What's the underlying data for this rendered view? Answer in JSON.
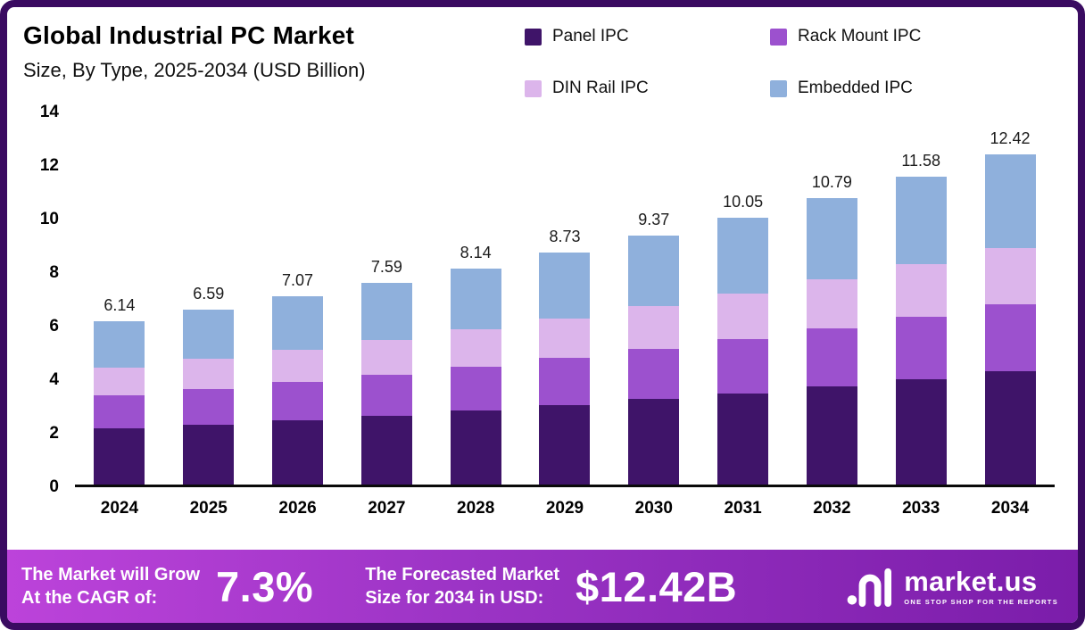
{
  "header": {
    "title": "Global Industrial PC Market",
    "subtitle": "Size, By Type, 2025-2034 (USD Billion)"
  },
  "legend": [
    {
      "label": "Panel IPC",
      "color": "#3f1469"
    },
    {
      "label": "Rack Mount IPC",
      "color": "#9c51ce"
    },
    {
      "label": "DIN Rail IPC",
      "color": "#dcb5eb"
    },
    {
      "label": "Embedded IPC",
      "color": "#8fb0dc"
    }
  ],
  "chart_data": {
    "type": "bar",
    "stacked": true,
    "title": "Global Industrial PC Market Size, By Type, 2025-2034 (USD Billion)",
    "xlabel": "",
    "ylabel": "",
    "ylim": [
      0,
      14
    ],
    "yticks": [
      0,
      2,
      4,
      6,
      8,
      10,
      12,
      14
    ],
    "grid": false,
    "legend_position": "top",
    "categories": [
      "2024",
      "2025",
      "2026",
      "2027",
      "2028",
      "2029",
      "2030",
      "2031",
      "2032",
      "2033",
      "2034"
    ],
    "series": [
      {
        "name": "Panel IPC",
        "color": "#3f1469",
        "values": [
          2.1,
          2.25,
          2.42,
          2.6,
          2.79,
          2.99,
          3.21,
          3.44,
          3.7,
          3.97,
          4.26
        ]
      },
      {
        "name": "Rack Mount IPC",
        "color": "#9c51ce",
        "values": [
          1.25,
          1.34,
          1.44,
          1.54,
          1.65,
          1.77,
          1.9,
          2.04,
          2.19,
          2.35,
          2.52
        ]
      },
      {
        "name": "DIN Rail IPC",
        "color": "#dcb5eb",
        "values": [
          1.05,
          1.13,
          1.21,
          1.3,
          1.39,
          1.49,
          1.6,
          1.72,
          1.84,
          1.98,
          2.12
        ]
      },
      {
        "name": "Embedded IPC",
        "color": "#8fb0dc",
        "values": [
          1.74,
          1.87,
          2.0,
          2.15,
          2.31,
          2.48,
          2.66,
          2.85,
          3.06,
          3.28,
          3.52
        ]
      }
    ],
    "totals": [
      6.14,
      6.59,
      7.07,
      7.59,
      8.14,
      8.73,
      9.37,
      10.05,
      10.79,
      11.58,
      12.42
    ],
    "total_labels": [
      "6.14",
      "6.59",
      "7.07",
      "7.59",
      "8.14",
      "8.73",
      "9.37",
      "10.05",
      "10.79",
      "11.58",
      "12.42"
    ]
  },
  "footer": {
    "cagr_label_line1": "The Market will Grow",
    "cagr_label_line2": "At the CAGR of:",
    "cagr_value": "7.3%",
    "forecast_label_line1": "The Forecasted Market",
    "forecast_label_line2": "Size for 2034 in USD:",
    "forecast_value": "$12.42B",
    "brand": "market.us",
    "brand_tagline": "ONE STOP SHOP FOR THE REPORTS"
  },
  "colors": {
    "frame_border": "#3a0b61",
    "banner_gradient_left": "#bc43da",
    "banner_gradient_right": "#7b1daa",
    "text": "#000000"
  }
}
